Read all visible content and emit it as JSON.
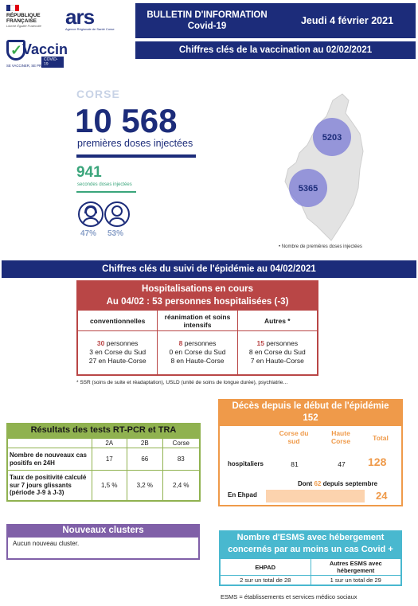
{
  "header": {
    "republique": "RÉPUBLIQUE FRANÇAISE",
    "devise": "Liberté Égalité Fraternité",
    "ars_logo": "ars",
    "ars_sub": "Agence Régionale de Santé Corse",
    "vaccin_logo": "Vaccin",
    "vaccin_badge": "COVID-19",
    "vaccin_tagline": "SE VACCINER, SE PROTÉGER",
    "bulletin_line1": "BULLETIN D'INFORMATION",
    "bulletin_line2": "Covid-19",
    "date": "Jeudi 4 février 2021",
    "subtitle": "Chiffres clés  de la vaccination au 02/02/2021"
  },
  "vaccination": {
    "region": "CORSE",
    "first_doses": "10 568",
    "first_doses_label": "premières doses injectées",
    "second_doses": "941",
    "second_doses_label": "secondes doses injectées",
    "pct_female": "47%",
    "pct_male": "53%"
  },
  "map": {
    "north_value": "5203",
    "south_value": "5365",
    "legend": "Nombre de premières doses injectées"
  },
  "epidemic": {
    "title": "Chiffres clés du suivi de l'épidémie  au 04/02/2021"
  },
  "hospitalisations": {
    "title": "Hospitalisations en cours",
    "subtitle": "Au 04/02 : 53 personnes hospitalisées (-3)",
    "columns": [
      {
        "header": "conventionnelles",
        "count": "30",
        "unit": " personnes",
        "line2": "3 en Corse du Sud",
        "line3": "27 en Haute-Corse"
      },
      {
        "header": "réanimation et soins intensifs",
        "count": "8",
        "unit": " personnes",
        "line2": "0 en Corse du Sud",
        "line3": "8 en Haute-Corse"
      },
      {
        "header": "Autres *",
        "count": "15",
        "unit": " personnes",
        "line2": "8 en Corse du Sud",
        "line3": "7 en Haute-Corse"
      }
    ],
    "note": "* SSR (soins de suite et réadaptation), USLD (unité de soins de longue durée), psychiatrie…"
  },
  "tests": {
    "title": "Résultats des tests RT-PCR et TRA",
    "columns": [
      "2A",
      "2B",
      "Corse"
    ],
    "rows": [
      {
        "label": "Nombre de nouveaux cas positifs en 24H",
        "values": [
          "17",
          "66",
          "83"
        ]
      },
      {
        "label": "Taux de positivité calculé sur 7 jours glissants (période J-9 à J-3)",
        "values": [
          "1,5 %",
          "3,2 %",
          "2,4 %"
        ]
      }
    ]
  },
  "deces": {
    "title": "Décès depuis le début de l'épidémie",
    "total_all": "152",
    "col_sud": "Corse du sud",
    "col_haute": "Haute Corse",
    "col_total": "Total",
    "row_label": "hospitaliers",
    "sud": "81",
    "haute": "47",
    "total": "128",
    "since_prefix": "Dont ",
    "since_value": "62",
    "since_suffix": " depuis septembre",
    "ehpad_label": "En Ehpad",
    "ehpad_value": "24"
  },
  "clusters": {
    "title": "Nouveaux clusters",
    "text": "Aucun nouveau cluster."
  },
  "esms": {
    "title": "Nombre d'ESMS avec hébergement concernés par au moins un cas Covid +",
    "col1": "EHPAD",
    "col2": "Autres ESMS avec hébergement",
    "val1": "2 sur un total de 28",
    "val2": "1 sur un total de 29",
    "note": "ESMS = établissements et services médico sociaux"
  }
}
